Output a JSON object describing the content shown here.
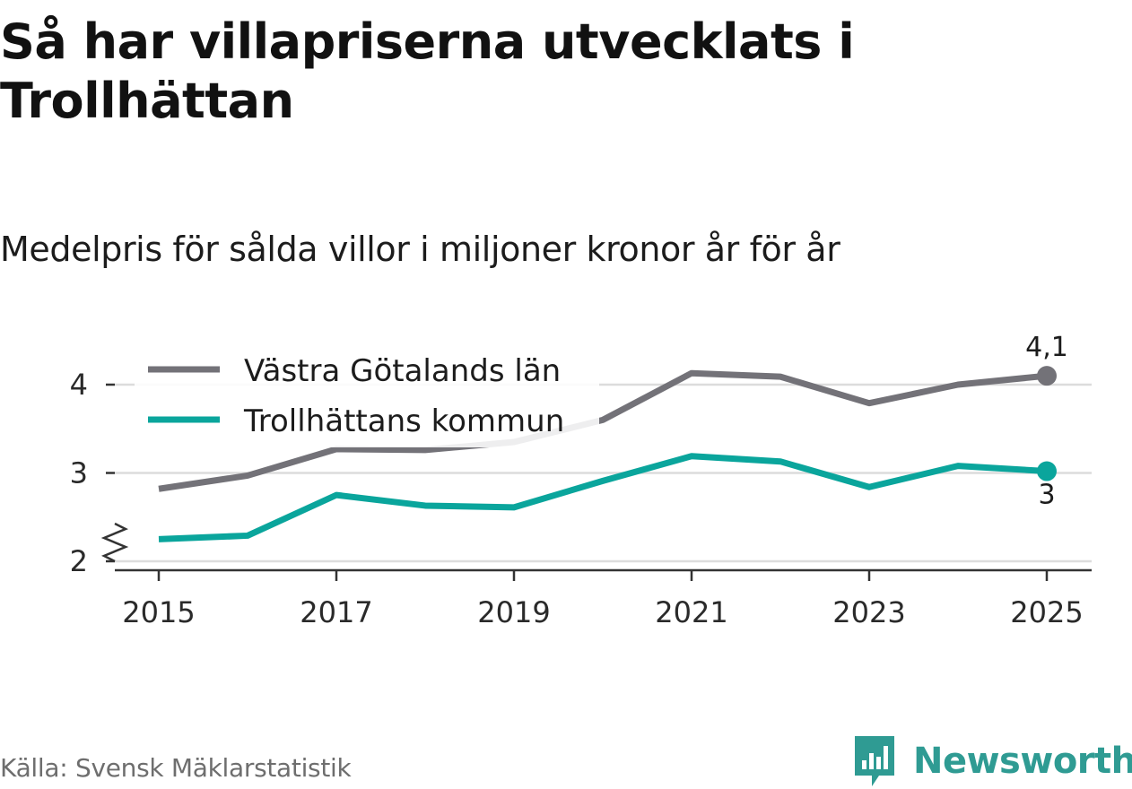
{
  "header": {
    "title": "Så har villapriserna utvecklats i Trollhättan",
    "subtitle": "Medelpris för sålda villor i miljoner kronor år för år"
  },
  "footer": {
    "source": "Källa: Svensk Mäklarstatistik",
    "brand": "Newsworthy"
  },
  "colors": {
    "vg": "#737278",
    "th": "#0aa59c",
    "grid": "#dcdcdc",
    "axis": "#333333",
    "brand": "#2f9b93"
  },
  "chart_data": {
    "type": "line",
    "title": "Så har villapriserna utvecklats i Trollhättan",
    "subtitle": "Medelpris för sålda villor i miljoner kronor år för år",
    "xlabel": "",
    "ylabel": "",
    "x": [
      2015,
      2016,
      2017,
      2018,
      2019,
      2020,
      2021,
      2022,
      2023,
      2024,
      2025
    ],
    "xticks": [
      "2015",
      "2017",
      "2019",
      "2021",
      "2023",
      "2025"
    ],
    "yticks": [
      "2",
      "3",
      "4"
    ],
    "ylim": [
      2,
      4.5
    ],
    "axis_break": true,
    "grid": true,
    "legend": "top-left",
    "series": [
      {
        "name": "Västra Götalands län",
        "key": "vg",
        "values": [
          2.82,
          2.97,
          3.27,
          3.26,
          3.35,
          3.6,
          4.13,
          4.09,
          3.79,
          4.0,
          4.1
        ],
        "end_label": "4,1"
      },
      {
        "name": "Trollhättans kommun",
        "key": "th",
        "values": [
          2.25,
          2.29,
          2.75,
          2.63,
          2.61,
          2.91,
          3.19,
          3.13,
          2.84,
          3.08,
          3.02
        ],
        "end_label": "3"
      }
    ]
  }
}
